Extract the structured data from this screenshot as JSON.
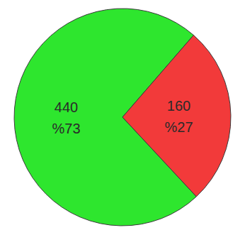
{
  "chart_data": {
    "type": "pie",
    "values": [
      440,
      160
    ],
    "percentages": [
      {
        "value": 73,
        "label": "%73"
      },
      {
        "value": 27,
        "label": "%27"
      }
    ],
    "colors": [
      "#2ee62e",
      "#f23a3a"
    ],
    "data_labels": true
  }
}
